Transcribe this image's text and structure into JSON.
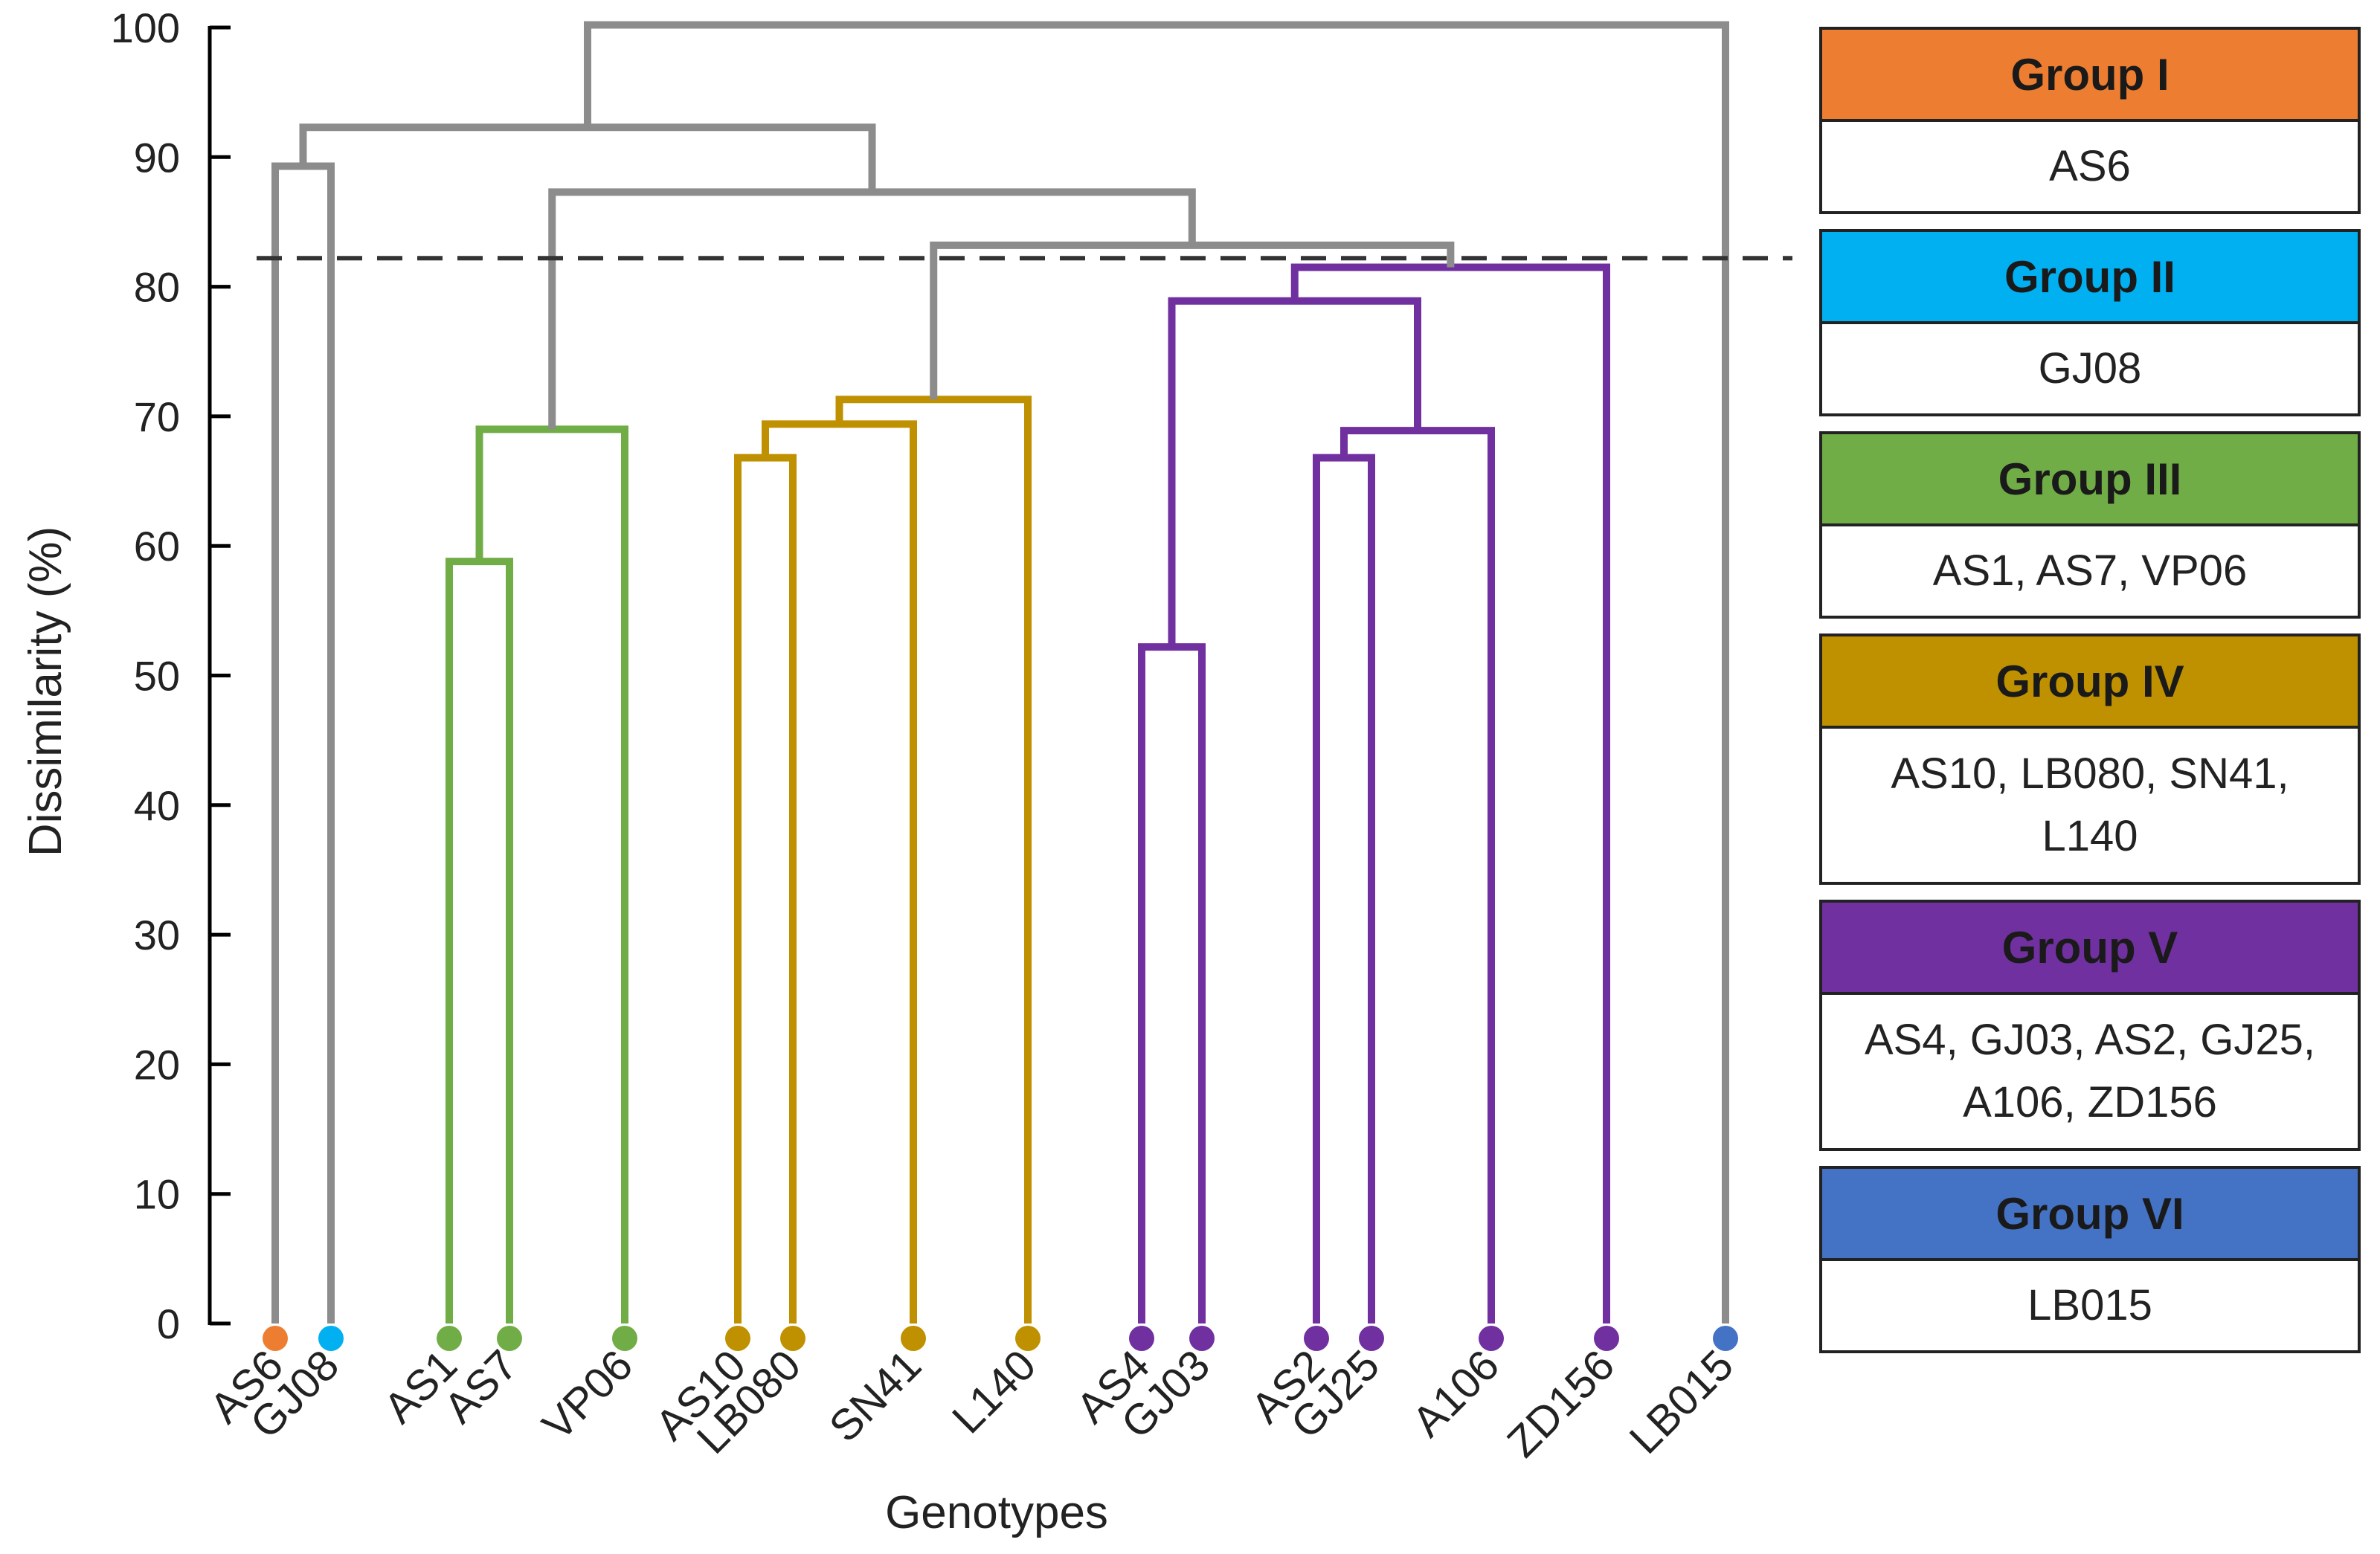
{
  "chart_data": {
    "type": "dendrogram",
    "ylabel": "Dissimilarity (%)",
    "xlabel": "Genotypes",
    "ylim": [
      0,
      100
    ],
    "yticks": [
      0,
      10,
      20,
      30,
      40,
      50,
      60,
      70,
      80,
      90,
      100
    ],
    "cut_height": 82.2,
    "leaves": [
      {
        "label": "AS6",
        "group": 1
      },
      {
        "label": "GJ08",
        "group": 2
      },
      {
        "label": "AS1",
        "group": 3
      },
      {
        "label": "AS7",
        "group": 3
      },
      {
        "label": "VP06",
        "group": 3
      },
      {
        "label": "AS10",
        "group": 4
      },
      {
        "label": "LB080",
        "group": 4
      },
      {
        "label": "SN41",
        "group": 4
      },
      {
        "label": "L140",
        "group": 4
      },
      {
        "label": "AS4",
        "group": 5
      },
      {
        "label": "GJ03",
        "group": 5
      },
      {
        "label": "AS2",
        "group": 5
      },
      {
        "label": "GJ25",
        "group": 5
      },
      {
        "label": "A106",
        "group": 5
      },
      {
        "label": "ZD156",
        "group": 5
      },
      {
        "label": "LB015",
        "group": 6
      }
    ],
    "merges": [
      {
        "left": "AS1",
        "right": "AS7",
        "height": 58.8,
        "group": 3
      },
      {
        "left": "M0",
        "right": "VP06",
        "height": 69.0,
        "group": 3
      },
      {
        "left": "AS10",
        "right": "LB080",
        "height": 66.8,
        "group": 4
      },
      {
        "left": "M2",
        "right": "SN41",
        "height": 69.4,
        "group": 4
      },
      {
        "left": "M3",
        "right": "L140",
        "height": 71.3,
        "group": 4
      },
      {
        "left": "AS4",
        "right": "GJ03",
        "height": 52.2,
        "group": 5
      },
      {
        "left": "AS2",
        "right": "GJ25",
        "height": 66.8,
        "group": 5
      },
      {
        "left": "M6",
        "right": "A106",
        "height": 68.9,
        "group": 5
      },
      {
        "left": "M5",
        "right": "M7",
        "height": 78.9,
        "group": 5
      },
      {
        "left": "M8",
        "right": "ZD156",
        "height": 81.5,
        "group": 5
      },
      {
        "left": "M4",
        "right": "M9",
        "height": 83.2,
        "group": 0
      },
      {
        "left": "M1",
        "right": "M10",
        "height": 87.3,
        "group": 0
      },
      {
        "left": "AS6",
        "right": "GJ08",
        "height": 89.3,
        "group": 0
      },
      {
        "left": "M12",
        "right": "M11",
        "height": 92.3,
        "group": 0
      },
      {
        "left": "M13",
        "right": "LB015",
        "height": 100.2,
        "group": 0
      }
    ],
    "groups": [
      {
        "name": "Group I",
        "members": "AS6",
        "color": "#ED7D31"
      },
      {
        "name": "Group II",
        "members": "GJ08",
        "color": "#00B0F0"
      },
      {
        "name": "Group III",
        "members": "AS1, AS7, VP06",
        "color": "#70AD47"
      },
      {
        "name": "Group IV",
        "members": "AS10, LB080, SN41, L140",
        "color": "#BF9000"
      },
      {
        "name": "Group V",
        "members": "AS4, GJ03, AS2, GJ25, A106, ZD156",
        "color": "#7030A0"
      },
      {
        "name": "Group VI",
        "members": "LB015",
        "color": "#4472C4"
      }
    ],
    "above_cut_color": "#8C8C8C"
  }
}
